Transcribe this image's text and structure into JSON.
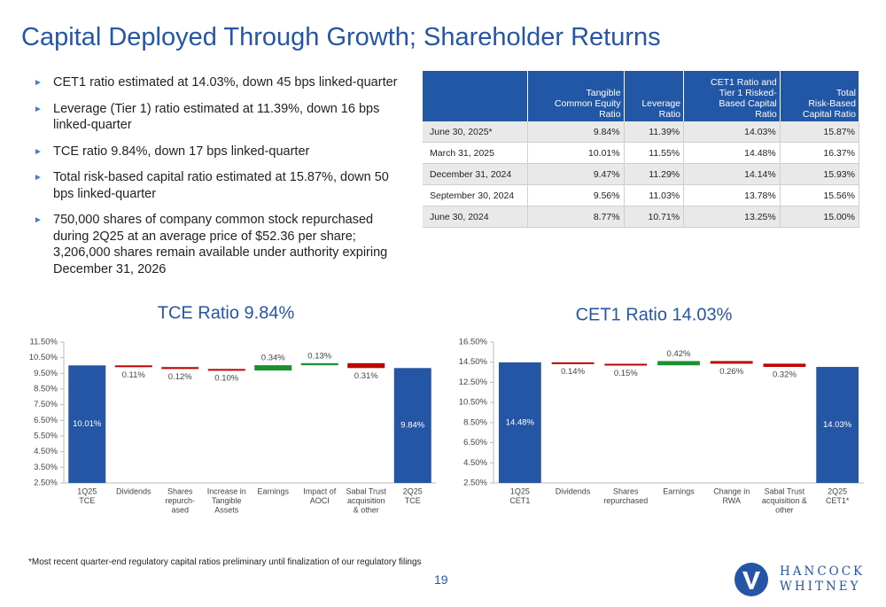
{
  "title": "Capital Deployed Through Growth; Shareholder Returns",
  "bullets": [
    "CET1 ratio estimated at 14.03%, down 45 bps linked-quarter",
    "Leverage (Tier 1) ratio estimated at 11.39%, down 16 bps linked-quarter",
    "TCE ratio 9.84%, down 17 bps linked-quarter",
    "Total risk-based capital ratio estimated at 15.87%, down 50 bps linked-quarter",
    "750,000 shares of company common stock repurchased during 2Q25 at an average price of $52.36 per share; 3,206,000 shares remain available under authority expiring December 31, 2026"
  ],
  "table": {
    "headers": [
      [
        "Tangible",
        "Common Equity",
        "Ratio"
      ],
      [
        "Leverage",
        "Ratio"
      ],
      [
        "CET1 Ratio and",
        "Tier 1 Risked-",
        "Based Capital",
        "Ratio"
      ],
      [
        "Total",
        "Risk-Based",
        "Capital Ratio"
      ]
    ],
    "rows": [
      [
        "June 30, 2025*",
        "9.84%",
        "11.39%",
        "14.03%",
        "15.87%"
      ],
      [
        "March 31, 2025",
        "10.01%",
        "11.55%",
        "14.48%",
        "16.37%"
      ],
      [
        "December 31, 2024",
        "9.47%",
        "11.29%",
        "14.14%",
        "15.93%"
      ],
      [
        "September 30, 2024",
        "9.56%",
        "11.03%",
        "13.78%",
        "15.56%"
      ],
      [
        "June 30, 2024",
        "8.77%",
        "10.71%",
        "13.25%",
        "15.00%"
      ]
    ]
  },
  "chart_data": [
    {
      "type": "waterfall",
      "title": "TCE Ratio 9.84%",
      "categories": [
        [
          "1Q25",
          "TCE"
        ],
        [
          "Dividends"
        ],
        [
          "Shares",
          "repurch-",
          "ased"
        ],
        [
          "Increase in",
          "Tangible",
          "Assets"
        ],
        [
          "Earnings"
        ],
        [
          "Impact of",
          "AOCI"
        ],
        [
          "Sabal Trust",
          "acquisition",
          "& other"
        ],
        [
          "2Q25",
          "TCE"
        ]
      ],
      "values": [
        10.01,
        -0.11,
        -0.12,
        -0.1,
        0.34,
        0.13,
        -0.31,
        9.84
      ],
      "value_labels": [
        "10.01%",
        "0.11%",
        "0.12%",
        "0.10%",
        "0.34%",
        "0.13%",
        "0.31%",
        "9.84%"
      ],
      "colors": [
        "#2556a6",
        "#c00000",
        "#c00000",
        "#c00000",
        "#1a9130",
        "#1a9130",
        "#c00000",
        "#2556a6"
      ],
      "ylim": [
        2.5,
        11.5
      ],
      "yticks": [
        {
          "value": 2.5,
          "label": "2.50%"
        },
        {
          "value": 3.5,
          "label": "3.50%"
        },
        {
          "value": 4.5,
          "label": "4.50%"
        },
        {
          "value": 5.5,
          "label": "5.50%"
        },
        {
          "value": 6.5,
          "label": "6.50%"
        },
        {
          "value": 7.5,
          "label": "7.50%"
        },
        {
          "value": 8.5,
          "label": "8.50%"
        },
        {
          "value": 9.5,
          "label": "9.50%"
        },
        {
          "value": 10.5,
          "label": "10.50%"
        },
        {
          "value": 11.5,
          "label": "11.50%"
        }
      ]
    },
    {
      "type": "waterfall",
      "title": "CET1 Ratio 14.03%",
      "categories": [
        [
          "1Q25",
          "CET1"
        ],
        [
          "Dividends"
        ],
        [
          "Shares",
          "repurchased"
        ],
        [
          "Earnings"
        ],
        [
          "Change in",
          "RWA"
        ],
        [
          "Sabal Trust",
          "acquisition &",
          "other"
        ],
        [
          "2Q25",
          "CET1*"
        ]
      ],
      "values": [
        14.48,
        -0.14,
        -0.15,
        0.42,
        -0.26,
        -0.32,
        14.03
      ],
      "value_labels": [
        "14.48%",
        "0.14%",
        "0.15%",
        "0.42%",
        "0.26%",
        "0.32%",
        "14.03%"
      ],
      "colors": [
        "#2556a6",
        "#c00000",
        "#c00000",
        "#1a9130",
        "#c00000",
        "#c00000",
        "#2556a6"
      ],
      "ylim": [
        2.5,
        16.5
      ],
      "yticks": [
        {
          "value": 2.5,
          "label": "2.50%"
        },
        {
          "value": 4.5,
          "label": "4.50%"
        },
        {
          "value": 6.5,
          "label": "6.50%"
        },
        {
          "value": 8.5,
          "label": "8.50%"
        },
        {
          "value": 10.5,
          "label": "10.50%"
        },
        {
          "value": 12.5,
          "label": "12.50%"
        },
        {
          "value": 14.5,
          "label": "14.50%"
        },
        {
          "value": 16.5,
          "label": "16.50%"
        }
      ]
    }
  ],
  "footnote": "*Most recent quarter-end regulatory capital ratios preliminary until finalization of our regulatory filings",
  "page_number": "19",
  "logo": [
    "HANCOCK",
    "WHITNEY"
  ]
}
